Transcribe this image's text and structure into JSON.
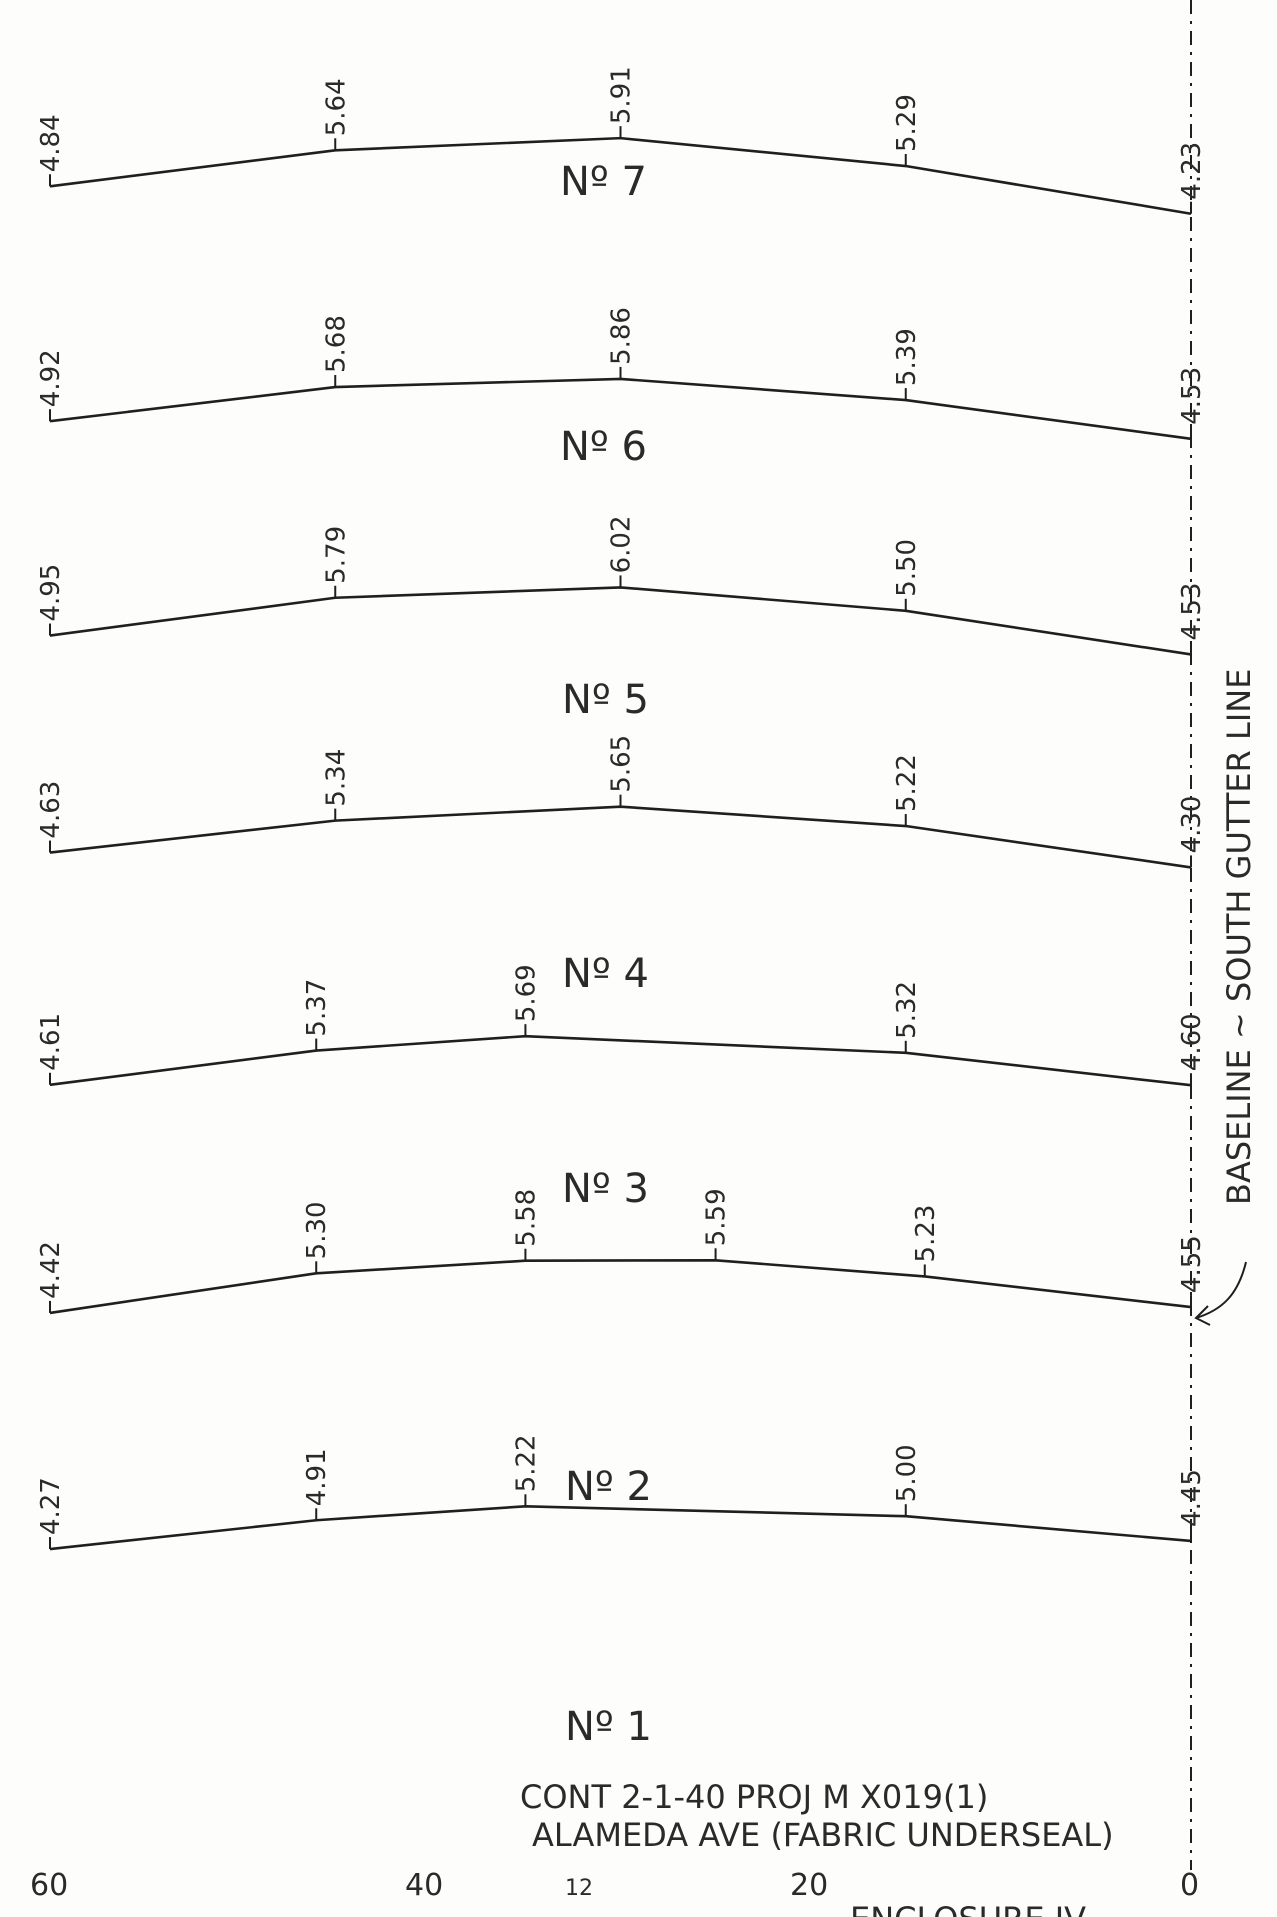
{
  "profiles": [
    {
      "label": "Nº 7",
      "points": [
        {
          "x": 60,
          "elev": "4.84"
        },
        {
          "x": 45,
          "elev": "5.64"
        },
        {
          "x": 30,
          "elev": "5.91"
        },
        {
          "x": 15,
          "elev": "5.29"
        },
        {
          "x": 0,
          "elev": "4.23"
        }
      ]
    },
    {
      "label": "Nº 6",
      "points": [
        {
          "x": 60,
          "elev": "4.92"
        },
        {
          "x": 45,
          "elev": "5.68"
        },
        {
          "x": 30,
          "elev": "5.86"
        },
        {
          "x": 15,
          "elev": "5.39"
        },
        {
          "x": 0,
          "elev": "4.53"
        }
      ]
    },
    {
      "label": "Nº 5",
      "points": [
        {
          "x": 60,
          "elev": "4.95"
        },
        {
          "x": 45,
          "elev": "5.79"
        },
        {
          "x": 30,
          "elev": "6.02"
        },
        {
          "x": 15,
          "elev": "5.50"
        },
        {
          "x": 0,
          "elev": "4.53"
        }
      ]
    },
    {
      "label": "Nº 4",
      "points": [
        {
          "x": 60,
          "elev": "4.63"
        },
        {
          "x": 45,
          "elev": "5.34"
        },
        {
          "x": 30,
          "elev": "5.65"
        },
        {
          "x": 15,
          "elev": "5.22"
        },
        {
          "x": 0,
          "elev": "4.30"
        }
      ]
    },
    {
      "label": "Nº 3",
      "points": [
        {
          "x": 60,
          "elev": "4.61"
        },
        {
          "x": 46,
          "elev": "5.37"
        },
        {
          "x": 35,
          "elev": "5.69"
        },
        {
          "x": 15,
          "elev": "5.32"
        },
        {
          "x": 0,
          "elev": "4.60"
        }
      ]
    },
    {
      "label": "Nº 2",
      "points": [
        {
          "x": 60,
          "elev": "4.42"
        },
        {
          "x": 46,
          "elev": "5.30"
        },
        {
          "x": 35,
          "elev": "5.58"
        },
        {
          "x": 25,
          "elev": "5.59"
        },
        {
          "x": 14,
          "elev": "5.23"
        },
        {
          "x": 0,
          "elev": "4.55"
        }
      ]
    },
    {
      "label": "Nº 1",
      "points": [
        {
          "x": 60,
          "elev": "4.27"
        },
        {
          "x": 46,
          "elev": "4.91"
        },
        {
          "x": 35,
          "elev": "5.22"
        },
        {
          "x": 15,
          "elev": "5.00"
        },
        {
          "x": 0,
          "elev": "4.45"
        }
      ]
    }
  ],
  "baseline_label": "BASELINE ~ SOUTH GUTTER LINE",
  "notes": {
    "line1": "CONT 2-1-40   PROJ M X019(1)",
    "line2": "ALAMEDA AVE (FABRIC UNDERSEAL)"
  },
  "axis_labels": [
    "60",
    "40",
    "12",
    "20",
    "0"
  ],
  "enclosure": "ENCLOSURE IV"
}
